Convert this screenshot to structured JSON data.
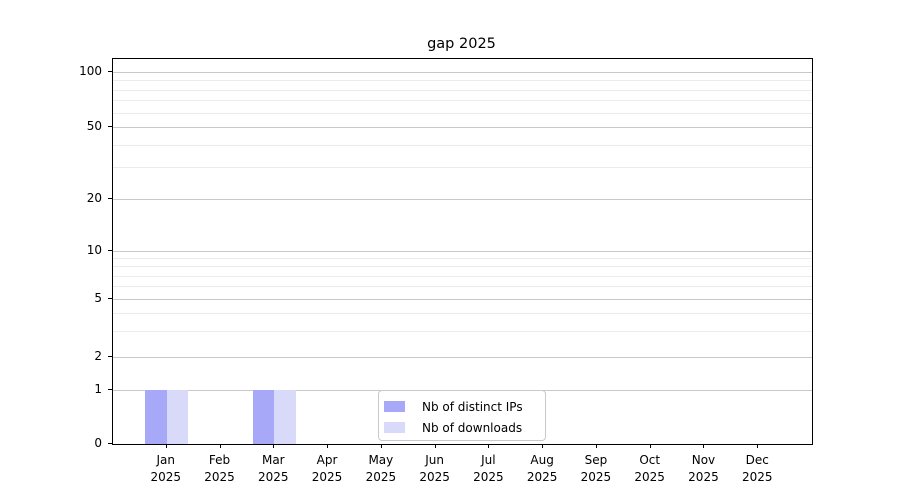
{
  "chart_data": {
    "type": "bar",
    "title": "gap 2025",
    "xlabel": "",
    "ylabel": "",
    "yscale": "symlog",
    "ylim": [
      0,
      120
    ],
    "grid": true,
    "legend_position": "lower center",
    "categories": [
      {
        "month": "Jan",
        "year": "2025"
      },
      {
        "month": "Feb",
        "year": "2025"
      },
      {
        "month": "Mar",
        "year": "2025"
      },
      {
        "month": "Apr",
        "year": "2025"
      },
      {
        "month": "May",
        "year": "2025"
      },
      {
        "month": "Jun",
        "year": "2025"
      },
      {
        "month": "Jul",
        "year": "2025"
      },
      {
        "month": "Aug",
        "year": "2025"
      },
      {
        "month": "Sep",
        "year": "2025"
      },
      {
        "month": "Oct",
        "year": "2025"
      },
      {
        "month": "Nov",
        "year": "2025"
      },
      {
        "month": "Dec",
        "year": "2025"
      }
    ],
    "series": [
      {
        "name": "Nb of distinct IPs",
        "color": "#a8a8f8",
        "values": [
          1,
          0,
          1,
          0,
          0,
          0,
          0,
          0,
          0,
          0,
          0,
          0
        ]
      },
      {
        "name": "Nb of downloads",
        "color": "#d9d9fa",
        "values": [
          1,
          0,
          1,
          0,
          0,
          0,
          0,
          0,
          0,
          0,
          0,
          0
        ]
      }
    ],
    "yticks": [
      0,
      1,
      2,
      5,
      10,
      20,
      50,
      100
    ],
    "yticks_minor": [
      3,
      4,
      6,
      7,
      8,
      9,
      30,
      40,
      60,
      70,
      80,
      90
    ]
  }
}
